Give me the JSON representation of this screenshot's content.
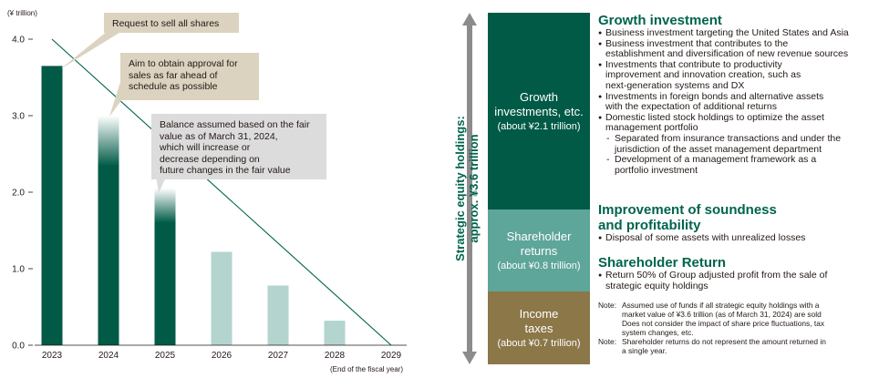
{
  "chart_data": {
    "type": "bar",
    "unit_label": "(¥ trillion)",
    "categories": [
      "2023",
      "2024",
      "2025",
      "2026",
      "2027",
      "2028",
      "2029"
    ],
    "values": [
      3.65,
      3.0,
      2.05,
      1.22,
      0.78,
      0.32,
      0
    ],
    "bar_styles": [
      "solid",
      "fade",
      "fade",
      "light",
      "light",
      "light",
      "none"
    ],
    "ylim": [
      0,
      4.0
    ],
    "yticks": [
      "0.0",
      "1.0",
      "2.0",
      "3.0",
      "4.0"
    ],
    "xnote": "(End of the fiscal year)",
    "trend_line": {
      "from": [
        "2023",
        4.0
      ],
      "to": [
        "2029",
        0
      ]
    },
    "annotations": [
      "Request to sell all shares",
      "Aim to obtain approval for sales as far ahead of schedule as possible",
      "Balance assumed based on the fair value as of March 31, 2024, which will increase or decrease depending on future changes in the fair value"
    ],
    "colors": {
      "dark": "#005a46",
      "light": "#b3d4cf",
      "line": "#00644e"
    }
  },
  "callouts": {
    "c1": "Request to sell all shares",
    "c2a": "Aim to obtain approval for",
    "c2b": "sales as far ahead of",
    "c2c": "schedule as possible",
    "c3a": "Balance assumed based on the fair",
    "c3b": "value as of March 31, 2024,",
    "c3c": "which will increase or",
    "c3d": "decrease depending on",
    "c3e": "future changes in the fair value"
  },
  "panel": {
    "side_label_1": "Strategic equity holdings:",
    "side_label_2": "approx. ¥3.6 trillion",
    "segments": {
      "growth": {
        "t1": "Growth",
        "t2": "investments, etc.",
        "t3": "(about ¥2.1 trillion)",
        "color": "#005a46"
      },
      "share": {
        "t1": "Shareholder",
        "t2": "returns",
        "t3": "(about ¥0.8 trillion)",
        "color": "#5ea59a"
      },
      "tax": {
        "t1": "Income",
        "t2": "taxes",
        "t3": "(about ¥0.7 trillion)",
        "color": "#8b7748"
      }
    },
    "growth": {
      "title": "Growth investment",
      "items": [
        "Business investment targeting the United States and Asia",
        "Business investment that contributes to the",
        "establishment and diversification of new revenue sources",
        "Investments that contribute to productivity",
        "improvement and innovation creation, such as",
        "next-generation systems and DX",
        "Investments in foreign bonds and alternative assets",
        "with the expectation of additional returns",
        "Domestic listed stock holdings to optimize the asset",
        "management portfolio",
        "Separated from insurance transactions and under the",
        "jurisdiction of the asset management department",
        "Development of a management framework as a",
        "portfolio investment"
      ]
    },
    "soundness": {
      "title1": "Improvement of soundness",
      "title2": "and profitability",
      "item": "Disposal of some assets with unrealized losses"
    },
    "return": {
      "title": "Shareholder Return",
      "item1": "Return 50% of Group adjusted profit from the sale of",
      "item2": "strategic equity holdings"
    },
    "notes": {
      "label": "Note:",
      "n1a": "Assumed use of funds if all strategic equity holdings with a",
      "n1b": "market value of ¥3.6 trillion (as of March 31, 2024) are sold",
      "n1c": "Does not consider the impact of share price fluctuations, tax",
      "n1d": "system changes, etc.",
      "n2a": "Shareholder returns do not represent the amount returned in",
      "n2b": "a single year."
    }
  }
}
